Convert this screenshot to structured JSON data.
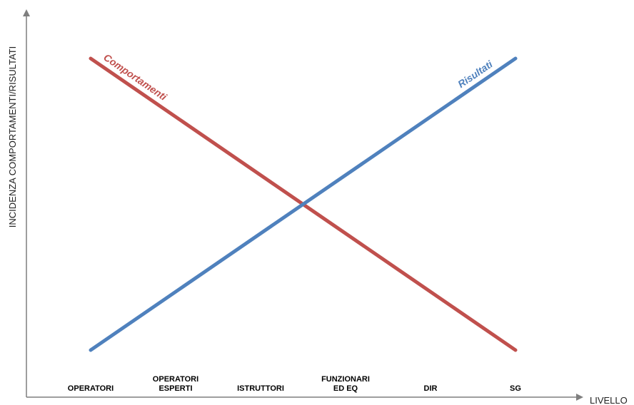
{
  "chart_data": {
    "type": "line",
    "xlabel": "LIVELLO",
    "ylabel": "INCIDENZA COMPORTAMENTI/RISULTATI",
    "categories": [
      [
        "OPERATORI"
      ],
      [
        "OPERATORI",
        "ESPERTI"
      ],
      [
        "ISTRUTTORI"
      ],
      [
        "FUNZIONARI",
        "ED EQ"
      ],
      [
        "DIR"
      ],
      [
        "SG"
      ]
    ],
    "series": [
      {
        "name": "Comportamenti",
        "color": "#C0504D",
        "start": 1,
        "end": 0
      },
      {
        "name": "Risultati",
        "color": "#4F81BD",
        "start": 0,
        "end": 1
      }
    ],
    "grid": false,
    "legend": "none"
  }
}
